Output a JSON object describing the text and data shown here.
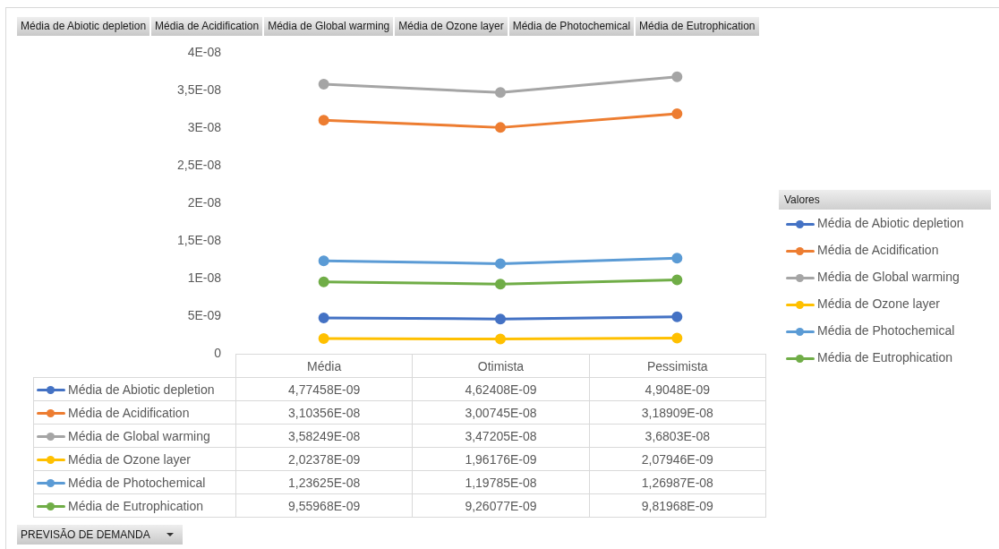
{
  "chart_data": {
    "type": "line",
    "legend_title": "Valores",
    "legend": "right",
    "marker": "circle",
    "line_style": "solid",
    "annotations": [
      "PREVISÃO DE DEMANDA"
    ],
    "categories": [
      "Média",
      "Otimista",
      "Pessimista"
    ],
    "ylim": [
      0,
      4e-08
    ],
    "yticks": [
      0,
      {
        "value": 5e-09,
        "label": "5E-09"
      },
      {
        "value": 1e-08,
        "label": "1E-08"
      },
      {
        "value": 1.5e-08,
        "label": "1,5E-08"
      },
      {
        "value": 2e-08,
        "label": "2E-08"
      },
      {
        "value": 2.5e-08,
        "label": "2,5E-08"
      },
      {
        "value": 3e-08,
        "label": "3E-08"
      },
      {
        "value": 3.5e-08,
        "label": "3,5E-08"
      },
      {
        "value": 4e-08,
        "label": "4E-08"
      }
    ],
    "series": [
      {
        "name": "Média de Abiotic depletion",
        "color": "#4472c4",
        "values": [
          4.77458e-09,
          4.62408e-09,
          4.9048e-09
        ],
        "value_labels": [
          "4,77458E-09",
          "4,62408E-09",
          "4,9048E-09"
        ]
      },
      {
        "name": "Média de Acidification",
        "color": "#ed7d31",
        "values": [
          3.10356e-08,
          3.00745e-08,
          3.18909e-08
        ],
        "value_labels": [
          "3,10356E-08",
          "3,00745E-08",
          "3,18909E-08"
        ]
      },
      {
        "name": "Média de Global warming",
        "color": "#a5a5a5",
        "values": [
          3.58249e-08,
          3.47205e-08,
          3.6803e-08
        ],
        "value_labels": [
          "3,58249E-08",
          "3,47205E-08",
          "3,6803E-08"
        ]
      },
      {
        "name": "Média de Ozone layer",
        "color": "#ffc000",
        "values": [
          2.02378e-09,
          1.96176e-09,
          2.07946e-09
        ],
        "value_labels": [
          "2,02378E-09",
          "1,96176E-09",
          "2,07946E-09"
        ]
      },
      {
        "name": "Média de Photochemical",
        "color": "#5b9bd5",
        "values": [
          1.23625e-08,
          1.19785e-08,
          1.26987e-08
        ],
        "value_labels": [
          "1,23625E-08",
          "1,19785E-08",
          "1,26987E-08"
        ]
      },
      {
        "name": "Média de Eutrophication",
        "color": "#70ad47",
        "values": [
          9.55968e-09,
          9.26077e-09,
          9.81968e-09
        ],
        "value_labels": [
          "9,55968E-09",
          "9,26077E-09",
          "9,81968E-09"
        ]
      }
    ]
  }
}
